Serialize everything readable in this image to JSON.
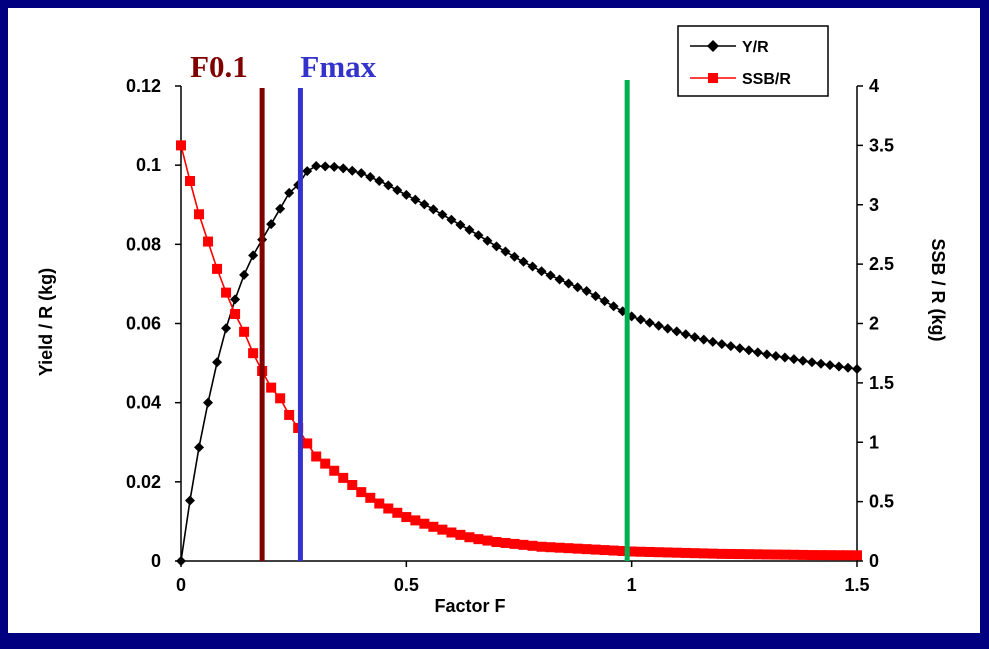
{
  "colors": {
    "border": "#000080",
    "background": "#ffffff",
    "yr": "#000000",
    "ssbr": "#ff0000",
    "f01_line": "#800000",
    "fmax_line": "#3333cc",
    "ref_line": "#00b050"
  },
  "chart_data": {
    "type": "line",
    "xlabel": "Factor F",
    "ylabel_left": "Yield / R (kg)",
    "ylabel_right": "SSB / R (kg)",
    "xlim": [
      0,
      1.5
    ],
    "ylim_left": [
      0,
      0.12
    ],
    "ylim_right": [
      0,
      4
    ],
    "x_ticks": [
      "0",
      "0.5",
      "1",
      "1.5"
    ],
    "y_left_ticks": [
      "0",
      "0.02",
      "0.04",
      "0.06",
      "0.08",
      "0.1",
      "0.12"
    ],
    "y_right_ticks": [
      "0",
      "0.5",
      "1",
      "1.5",
      "2",
      "2.5",
      "3",
      "3.5",
      "4"
    ],
    "grid": false,
    "legend_position": "top-right",
    "series": [
      {
        "name": "Y/R",
        "axis": "left",
        "marker": "diamond",
        "x": [
          0.0,
          0.02,
          0.04,
          0.06,
          0.08,
          0.1,
          0.12,
          0.14,
          0.16,
          0.18,
          0.2,
          0.22,
          0.24,
          0.26,
          0.28,
          0.3,
          0.35,
          0.4,
          0.45,
          0.5,
          0.55,
          0.6,
          0.65,
          0.7,
          0.75,
          0.8,
          0.85,
          0.9,
          0.95,
          1.0,
          1.05,
          1.1,
          1.15,
          1.2,
          1.25,
          1.3,
          1.35,
          1.4,
          1.45,
          1.5
        ],
        "y": [
          0.0,
          0.0153,
          0.0287,
          0.04,
          0.0502,
          0.0588,
          0.0661,
          0.0723,
          0.0772,
          0.0812,
          0.0851,
          0.089,
          0.093,
          0.095,
          0.0985,
          0.0998,
          0.0995,
          0.098,
          0.0955,
          0.0925,
          0.0895,
          0.0862,
          0.083,
          0.0795,
          0.0762,
          0.0732,
          0.0706,
          0.0682,
          0.065,
          0.0618,
          0.0598,
          0.058,
          0.0562,
          0.0548,
          0.0535,
          0.0522,
          0.0512,
          0.0502,
          0.0493,
          0.0485
        ]
      },
      {
        "name": "SSB/R",
        "axis": "right",
        "marker": "square",
        "x": [
          0.0,
          0.02,
          0.04,
          0.06,
          0.08,
          0.1,
          0.12,
          0.14,
          0.16,
          0.18,
          0.2,
          0.22,
          0.24,
          0.26,
          0.28,
          0.3,
          0.35,
          0.4,
          0.45,
          0.5,
          0.55,
          0.6,
          0.65,
          0.7,
          0.75,
          0.8,
          0.85,
          0.9,
          0.95,
          1.0,
          1.05,
          1.1,
          1.15,
          1.2,
          1.25,
          1.3,
          1.35,
          1.4,
          1.45,
          1.5
        ],
        "y": [
          3.5,
          3.2,
          2.92,
          2.69,
          2.46,
          2.26,
          2.08,
          1.93,
          1.75,
          1.6,
          1.46,
          1.37,
          1.23,
          1.12,
          0.99,
          0.88,
          0.73,
          0.58,
          0.46,
          0.37,
          0.3,
          0.24,
          0.19,
          0.16,
          0.14,
          0.12,
          0.11,
          0.1,
          0.09,
          0.08,
          0.075,
          0.07,
          0.065,
          0.06,
          0.058,
          0.055,
          0.053,
          0.05,
          0.049,
          0.048
        ]
      }
    ],
    "vertical_lines": [
      {
        "label": "F0.1",
        "x": 0.18,
        "color": "#800000"
      },
      {
        "label": "Fmax",
        "x": 0.265,
        "color": "#3333cc"
      },
      {
        "label": "",
        "x": 0.99,
        "color": "#00b050"
      }
    ]
  }
}
